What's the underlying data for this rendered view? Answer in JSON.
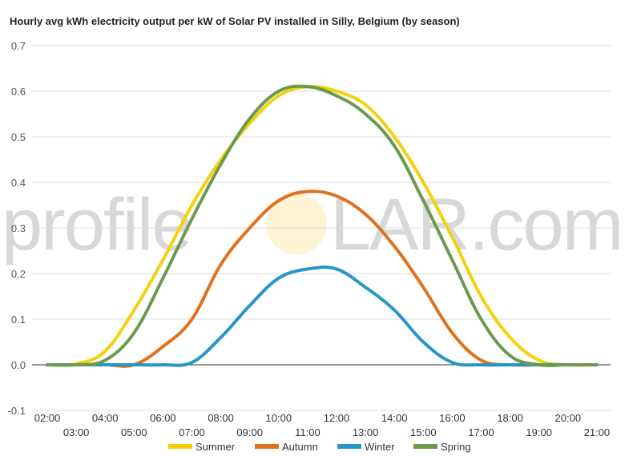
{
  "chart_data": {
    "type": "line",
    "title": "Hourly avg kWh electricity output per kW of Solar PV installed in Silly, Belgium (by season)",
    "ylim": [
      -0.1,
      0.7
    ],
    "yticks": [
      "-0.1",
      "0.0",
      "0.1",
      "0.2",
      "0.3",
      "0.4",
      "0.5",
      "0.6",
      "0.7"
    ],
    "ytick_values": [
      -0.1,
      0.0,
      0.1,
      0.2,
      0.3,
      0.4,
      0.5,
      0.6,
      0.7
    ],
    "xticks_upper": [
      "02:00",
      "04:00",
      "06:00",
      "08:00",
      "10:00",
      "12:00",
      "14:00",
      "16:00",
      "18:00",
      "20:00"
    ],
    "xticks_lower": [
      "03:00",
      "05:00",
      "07:00",
      "09:00",
      "11:00",
      "13:00",
      "15:00",
      "17:00",
      "19:00",
      "21:00"
    ],
    "xtick_hours_upper": [
      2,
      4,
      6,
      8,
      10,
      12,
      14,
      16,
      18,
      20
    ],
    "xtick_hours_lower": [
      3,
      5,
      7,
      9,
      11,
      13,
      15,
      17,
      19,
      21
    ],
    "x": [
      2,
      3,
      4,
      5,
      6,
      7,
      8,
      9,
      10,
      11,
      12,
      13,
      14,
      15,
      16,
      17,
      18,
      19,
      20,
      21
    ],
    "series": [
      {
        "name": "Summer",
        "color": "#f5d10b",
        "values": [
          0.0,
          0.002,
          0.03,
          0.12,
          0.23,
          0.35,
          0.45,
          0.53,
          0.59,
          0.61,
          0.6,
          0.57,
          0.5,
          0.4,
          0.28,
          0.15,
          0.06,
          0.01,
          0.0,
          0.0
        ]
      },
      {
        "name": "Autumn",
        "color": "#e0711f",
        "values": [
          0.0,
          0.0,
          0.0,
          0.0,
          0.04,
          0.1,
          0.22,
          0.3,
          0.36,
          0.38,
          0.37,
          0.33,
          0.26,
          0.17,
          0.07,
          0.01,
          0.0,
          0.0,
          0.0,
          0.0
        ]
      },
      {
        "name": "Winter",
        "color": "#2696c8",
        "values": [
          0.0,
          0.0,
          0.0,
          0.0,
          0.0,
          0.005,
          0.06,
          0.13,
          0.19,
          0.21,
          0.21,
          0.17,
          0.12,
          0.05,
          0.005,
          0.0,
          0.0,
          0.0,
          0.0,
          0.0
        ]
      },
      {
        "name": "Spring",
        "color": "#6b9a4f",
        "values": [
          0.0,
          0.0,
          0.01,
          0.07,
          0.19,
          0.32,
          0.44,
          0.54,
          0.6,
          0.61,
          0.59,
          0.55,
          0.48,
          0.36,
          0.23,
          0.1,
          0.02,
          0.0,
          0.0,
          0.0
        ]
      }
    ],
    "grid": true,
    "legend": "bottom",
    "watermark": {
      "left": "profile",
      "right": "LAR.com"
    }
  }
}
